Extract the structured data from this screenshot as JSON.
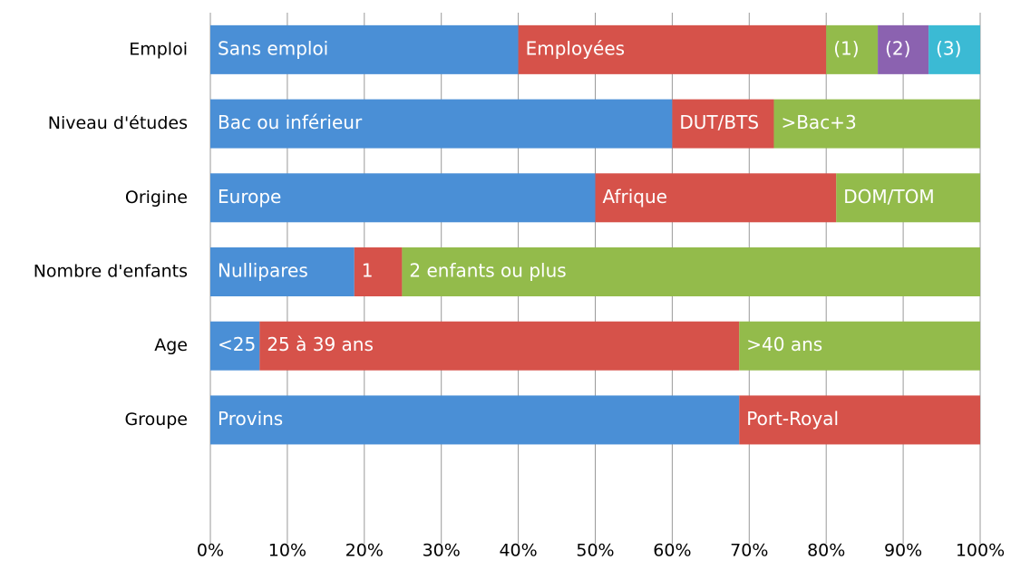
{
  "chart_data": {
    "type": "bar",
    "orientation": "horizontal",
    "stacked": true,
    "rows": [
      {
        "name": "Emploi",
        "segments": [
          {
            "name": "Sans emploi",
            "value": 40,
            "color": "#4a8fd6"
          },
          {
            "name": "Employées",
            "value": 40,
            "color": "#d6524a"
          },
          {
            "name": "(1)",
            "value": 6.7,
            "color": "#93bb4b"
          },
          {
            "name": "(2)",
            "value": 6.6,
            "color": "#8b62b0"
          },
          {
            "name": "(3)",
            "value": 6.7,
            "color": "#3bbad4"
          }
        ]
      },
      {
        "name": "Niveau d'études",
        "segments": [
          {
            "name": "Bac ou inférieur",
            "value": 60,
            "color": "#4a8fd6"
          },
          {
            "name": "DUT/BTS",
            "value": 13.2,
            "color": "#d6524a"
          },
          {
            "name": ">Bac+3",
            "value": 26.8,
            "color": "#93bb4b"
          }
        ]
      },
      {
        "name": "Origine",
        "segments": [
          {
            "name": "Europe",
            "value": 50,
            "color": "#4a8fd6"
          },
          {
            "name": "Afrique",
            "value": 31.3,
            "color": "#d6524a"
          },
          {
            "name": "DOM/TOM",
            "value": 18.7,
            "color": "#93bb4b"
          }
        ]
      },
      {
        "name": "Nombre d'enfants",
        "segments": [
          {
            "name": "Nullipares",
            "value": 18.7,
            "color": "#4a8fd6"
          },
          {
            "name": "1",
            "value": 6.2,
            "color": "#d6524a"
          },
          {
            "name": "2 enfants ou plus",
            "value": 75.1,
            "color": "#93bb4b"
          }
        ]
      },
      {
        "name": "Age",
        "segments": [
          {
            "name": "<25",
            "value": 6.4,
            "color": "#4a8fd6"
          },
          {
            "name": "25 à 39 ans",
            "value": 62.3,
            "color": "#d6524a"
          },
          {
            "name": ">40 ans",
            "value": 31.3,
            "color": "#93bb4b"
          }
        ]
      },
      {
        "name": "Groupe",
        "segments": [
          {
            "name": "Provins",
            "value": 68.7,
            "color": "#4a8fd6"
          },
          {
            "name": "Port-Royal",
            "value": 31.3,
            "color": "#d6524a"
          }
        ]
      },
      {
        "name": null,
        "segments": []
      }
    ],
    "xlim": [
      0,
      100
    ],
    "xticks": [
      {
        "value": 0,
        "label": "0%"
      },
      {
        "value": 10,
        "label": "10%"
      },
      {
        "value": 20,
        "label": "20%"
      },
      {
        "value": 30,
        "label": "30%"
      },
      {
        "value": 40,
        "label": "40%"
      },
      {
        "value": 50,
        "label": "50%"
      },
      {
        "value": 60,
        "label": "60%"
      },
      {
        "value": 70,
        "label": "70%"
      },
      {
        "value": 80,
        "label": "80%"
      },
      {
        "value": 90,
        "label": "90%"
      },
      {
        "value": 100,
        "label": "100%"
      }
    ],
    "grid": true
  }
}
